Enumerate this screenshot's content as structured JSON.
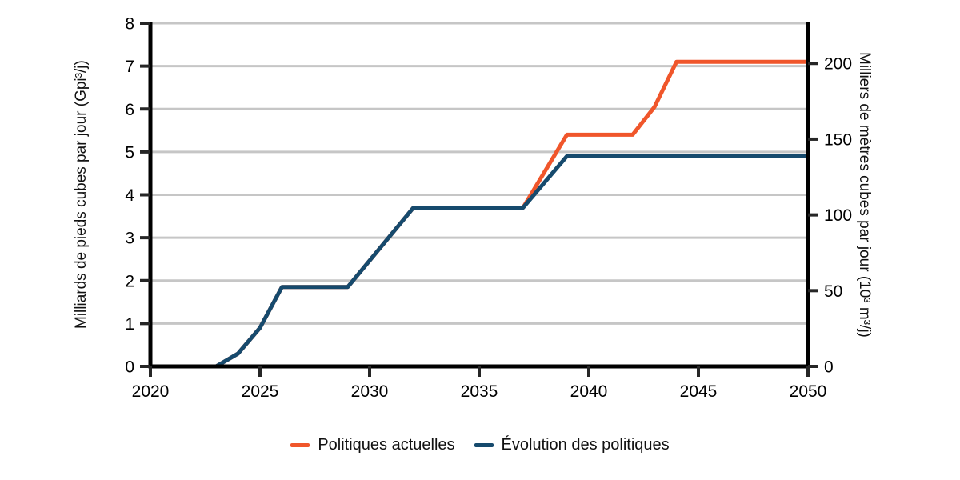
{
  "chart_data": {
    "type": "line",
    "title": "",
    "grid": {
      "on": true,
      "color": "#c6c6c6"
    },
    "legend_position": "bottom",
    "x_axis": {
      "range": [
        2020,
        2050
      ],
      "ticks": [
        2020,
        2025,
        2030,
        2035,
        2040,
        2045,
        2050
      ]
    },
    "left_axis": {
      "label": "Milliards de pieds cubes par jour (Gpi³/j)",
      "range": [
        0,
        8
      ],
      "ticks": [
        0,
        1,
        2,
        3,
        4,
        5,
        6,
        7,
        8
      ]
    },
    "right_axis": {
      "label": "Milliers de mètres cubes par jour (10³ m³/j)",
      "ticks": [
        0,
        50,
        100,
        150,
        200
      ],
      "conversion": 28.3168
    },
    "series": [
      {
        "name": "Politiques actuelles",
        "color": "#F0562B",
        "x": [
          2023,
          2024,
          2025,
          2026,
          2029,
          2032,
          2037,
          2039,
          2042,
          2043,
          2044,
          2050
        ],
        "y": [
          0,
          0.3,
          0.9,
          1.85,
          1.85,
          3.7,
          3.7,
          5.4,
          5.4,
          6.05,
          7.1,
          7.1
        ]
      },
      {
        "name": "Évolution des politiques",
        "color": "#164A6D",
        "x": [
          2023,
          2024,
          2025,
          2026,
          2029,
          2032,
          2037,
          2039,
          2050
        ],
        "y": [
          0,
          0.3,
          0.9,
          1.85,
          1.85,
          3.7,
          3.7,
          4.9,
          4.9
        ]
      }
    ]
  }
}
